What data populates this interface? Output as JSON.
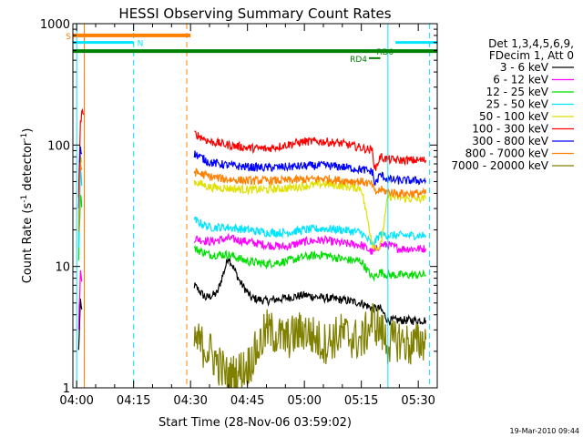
{
  "chart_data": {
    "type": "line",
    "title": "HESSI Observing Summary Count Rates",
    "xlabel": "Start Time (28-Nov-06 03:59:02)",
    "ylabel_main": "Count Rate (s",
    "ylabel_sup1": "-1",
    "ylabel_mid": " detector",
    "ylabel_sup2": "-1",
    "ylabel_end": ")",
    "x_tick_labels": [
      "04:00",
      "04:15",
      "04:30",
      "04:45",
      "05:00",
      "05:15",
      "05:30"
    ],
    "x_tick_minutes": [
      0,
      15,
      30,
      45,
      60,
      75,
      90
    ],
    "xlim_minutes": [
      -1,
      95
    ],
    "y_scale": "log",
    "ylim": [
      1,
      1000
    ],
    "y_tick_labels": [
      "1",
      "10",
      "100",
      "1000"
    ],
    "legend_header": [
      "Det 1,3,4,5,6,9,",
      "FDecim 1, Att 0"
    ],
    "timestamp": "19-Mar-2010 09:44",
    "flags": [
      {
        "label": "S",
        "start": -1,
        "end": 30,
        "level": 800,
        "color": "#ff7f00",
        "width": 4
      },
      {
        "label": "N",
        "start": -1,
        "end": 15,
        "level": 700,
        "color": "#00e5ff",
        "width": 3
      },
      {
        "label": "",
        "start": 84,
        "end": 95,
        "level": 700,
        "color": "#00e5ff",
        "width": 3
      },
      {
        "label": "RD0",
        "start": -1,
        "end": 95,
        "level": 595,
        "color": "#008000",
        "width": 4
      },
      {
        "label": "RD4",
        "start": 77,
        "end": 80,
        "level": 520,
        "color": "#008000",
        "width": 2
      }
    ],
    "flag_label_positions": {
      "S": "left",
      "N": "end",
      "RD0": "right-start",
      "RD4": "left"
    },
    "vlines": [
      {
        "t": 0,
        "style": "solid",
        "color": "#00e5ff"
      },
      {
        "t": 2,
        "style": "solid",
        "color": "#ff7f00"
      },
      {
        "t": 15,
        "style": "dashed",
        "color": "#00e5ff"
      },
      {
        "t": 29,
        "style": "dashed",
        "color": "#ff7f00"
      },
      {
        "t": 82,
        "style": "solid",
        "color": "#00e5ff"
      },
      {
        "t": 93,
        "style": "dashed",
        "color": "#00e5ff"
      }
    ],
    "series": [
      {
        "name": "3 - 6 keV",
        "color": "#000000",
        "t": [
          0.5,
          1,
          1.5,
          31,
          34,
          37,
          40,
          43,
          46,
          50,
          55,
          60,
          65,
          70,
          75,
          78,
          80,
          82,
          85,
          88,
          92
        ],
        "v": [
          2,
          5,
          4,
          7,
          5.5,
          6,
          12,
          7.5,
          5.5,
          5.2,
          5.5,
          5.8,
          5.5,
          5.3,
          5,
          4.5,
          4.5,
          3.6,
          3.6,
          3.6,
          3.6
        ]
      },
      {
        "name": "6 - 12 keV",
        "color": "#ff00ff",
        "t": [
          0.5,
          1,
          1.5,
          31,
          35,
          40,
          45,
          50,
          55,
          60,
          65,
          70,
          75,
          78,
          80,
          82,
          85,
          88,
          92
        ],
        "v": [
          3,
          9,
          7,
          17,
          16,
          17,
          16,
          15,
          14.5,
          16,
          16.5,
          15.5,
          15,
          13,
          15,
          15,
          14,
          14,
          14
        ]
      },
      {
        "name": "12 - 25 keV",
        "color": "#00e000",
        "t": [
          0.5,
          1,
          1.5,
          31,
          35,
          40,
          45,
          50,
          55,
          60,
          65,
          70,
          75,
          78,
          80,
          82,
          85,
          88,
          92
        ],
        "v": [
          12,
          40,
          30,
          14,
          12.5,
          12.5,
          11,
          10.5,
          11,
          12,
          12.5,
          11.5,
          11,
          8,
          9,
          8.5,
          8.5,
          8.5,
          8.5
        ]
      },
      {
        "name": "25 - 50 keV",
        "color": "#00e5ff",
        "t": [
          0.5,
          1,
          1.5,
          31,
          35,
          40,
          45,
          50,
          55,
          60,
          65,
          70,
          75,
          78,
          80,
          82,
          85,
          88,
          92
        ],
        "v": [
          15,
          60,
          45,
          24,
          21,
          21,
          20,
          19,
          19,
          20,
          20.5,
          20,
          19,
          15,
          18.5,
          18,
          18,
          18,
          18
        ]
      },
      {
        "name": "50 - 100 keV",
        "color": "#e0e000",
        "t": [
          0.5,
          1,
          1.5,
          31,
          35,
          40,
          45,
          50,
          55,
          60,
          65,
          70,
          75,
          78,
          80,
          82,
          85,
          88,
          92
        ],
        "v": [
          25,
          80,
          70,
          50,
          45,
          44,
          43,
          43,
          44,
          46,
          48,
          46,
          44,
          15,
          14,
          38,
          37,
          36,
          36
        ]
      },
      {
        "name": "100 - 300 keV",
        "color": "#ff0000",
        "t": [
          0.5,
          1,
          1.5,
          2,
          31,
          35,
          40,
          45,
          50,
          55,
          60,
          65,
          70,
          75,
          78,
          78.5,
          80,
          82,
          85,
          88,
          92
        ],
        "v": [
          40,
          150,
          200,
          150,
          125,
          107,
          100,
          95,
          93,
          100,
          107,
          107,
          103,
          95,
          90,
          62,
          80,
          76,
          75,
          75,
          75
        ]
      },
      {
        "name": "300 - 800 keV",
        "color": "#0000ff",
        "t": [
          0.5,
          1,
          1.5,
          31,
          35,
          40,
          45,
          50,
          55,
          60,
          65,
          70,
          75,
          78,
          78.5,
          80,
          82,
          85,
          88,
          92
        ],
        "v": [
          30,
          100,
          80,
          85,
          72,
          68,
          66,
          65,
          66,
          67,
          68,
          66,
          63,
          60,
          47,
          57,
          52,
          51,
          51,
          51
        ]
      },
      {
        "name": "800 - 7000 keV",
        "color": "#ff7f00",
        "t": [
          0.5,
          1,
          1.5,
          31,
          35,
          40,
          45,
          50,
          55,
          60,
          65,
          70,
          75,
          78,
          78.5,
          80,
          82,
          85,
          88,
          92
        ],
        "v": [
          20,
          70,
          60,
          60,
          55,
          52,
          51,
          51,
          51,
          52,
          53,
          51,
          50,
          47,
          40,
          43,
          41,
          40,
          40,
          40
        ]
      },
      {
        "name": "7000 - 20000 keV",
        "color": "#808000",
        "t": [
          31,
          35,
          40,
          45,
          48,
          50,
          55,
          60,
          65,
          70,
          75,
          78,
          80,
          82,
          85,
          88,
          92
        ],
        "v": [
          2.5,
          2,
          1.2,
          1.5,
          2.2,
          3,
          2.5,
          3,
          2.3,
          2.8,
          2.4,
          3.6,
          3,
          2.3,
          2.5,
          2.2,
          2.5
        ]
      }
    ]
  }
}
